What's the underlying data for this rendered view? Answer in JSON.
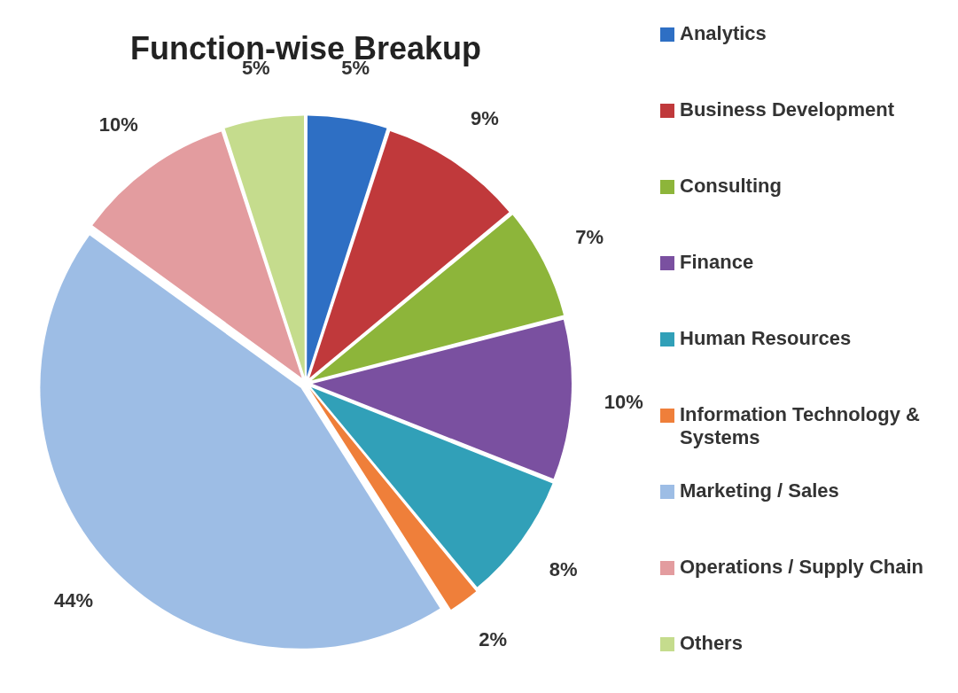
{
  "chart_data": {
    "type": "pie",
    "title": "Function-wise Breakup",
    "categories": [
      "Analytics",
      "Business Development",
      "Consulting",
      "Finance",
      "Human Resources",
      "Information Technology & Systems",
      "Marketing / Sales",
      "Operations / Supply Chain",
      "Others"
    ],
    "values": [
      5,
      9,
      7,
      10,
      8,
      2,
      44,
      10,
      5
    ],
    "colors": [
      "#2e6fc4",
      "#c0393b",
      "#8db53a",
      "#7a50a0",
      "#31a0b8",
      "#ef7f3a",
      "#9dbde5",
      "#e39c9f",
      "#c5dc8d"
    ],
    "value_labels": [
      "5%",
      "9%",
      "7%",
      "10%",
      "8%",
      "2%",
      "44%",
      "10%",
      "5%"
    ],
    "legend": "right"
  }
}
